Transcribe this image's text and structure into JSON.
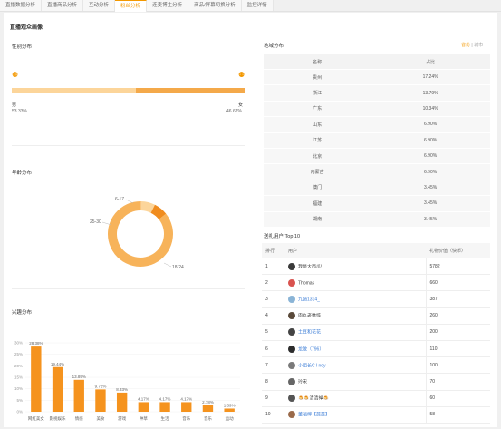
{
  "tabs": [
    {
      "label": "直播数据分析",
      "active": false
    },
    {
      "label": "直播商品分析",
      "active": false
    },
    {
      "label": "互动分析",
      "active": false
    },
    {
      "label": "粉丝分析",
      "active": true
    },
    {
      "label": "连麦博主分析",
      "active": false
    },
    {
      "label": "商品/屏幕切换分析",
      "active": false
    },
    {
      "label": "监控详情",
      "active": false
    }
  ],
  "page_title": "直播观众画像",
  "gender": {
    "title": "性别分布",
    "male_label": "男",
    "male_pct": "53.33%",
    "male_value": 53.33,
    "female_label": "女",
    "female_pct": "46.67%",
    "female_value": 46.67,
    "male_icon": "male-icon",
    "female_icon": "female-icon"
  },
  "age": {
    "title": "年龄分布",
    "labels": {
      "a": "6-17",
      "b": "25-30",
      "c": "18-24"
    }
  },
  "interest": {
    "title": "兴趣分布"
  },
  "region": {
    "title": "地域分布",
    "switch_province": "省份",
    "switch_sep": "|",
    "switch_city": "城市",
    "headers": [
      "名称",
      "占比"
    ],
    "rows": [
      [
        "贵州",
        "17.24%"
      ],
      [
        "浙江",
        "13.79%"
      ],
      [
        "广东",
        "10.34%"
      ],
      [
        "山东",
        "6.90%"
      ],
      [
        "江苏",
        "6.90%"
      ],
      [
        "北京",
        "6.90%"
      ],
      [
        "内蒙古",
        "6.90%"
      ],
      [
        "澳门",
        "3.45%"
      ],
      [
        "福建",
        "3.45%"
      ],
      [
        "湖南",
        "3.45%"
      ]
    ]
  },
  "top10": {
    "title": "送礼用户 Top 10",
    "headers": [
      "排行",
      "用户",
      "礼物价值（快币）"
    ],
    "rows": [
      {
        "rank": "1",
        "name": "我是大西瓜!",
        "value": "5782",
        "link": false,
        "avatar": "#3a3a3a"
      },
      {
        "rank": "2",
        "name": "Thomas",
        "value": "660",
        "link": false,
        "avatar": "#d9534f"
      },
      {
        "rank": "3",
        "name": "九嶺1314_",
        "value": "387",
        "link": true,
        "avatar": "#8ab4d6"
      },
      {
        "rank": "4",
        "name": "肉丸老憔悴",
        "value": "260",
        "link": false,
        "avatar": "#5a4a3a"
      },
      {
        "rank": "5",
        "name": "土豆和花花",
        "value": "200",
        "link": true,
        "avatar": "#444"
      },
      {
        "rank": "6",
        "name": "龙敢（796）",
        "value": "110",
        "link": true,
        "avatar": "#2d2d2d"
      },
      {
        "rank": "7",
        "name": "小组长C l ndy",
        "value": "100",
        "link": true,
        "avatar": "#7a7a7a"
      },
      {
        "rank": "8",
        "name": "玲宋",
        "value": "70",
        "link": false,
        "avatar": "#666"
      },
      {
        "rank": "9",
        "name": "🍮🍮清清禅🍮",
        "value": "60",
        "link": false,
        "avatar": "#555"
      },
      {
        "rank": "10",
        "name": "董瑞檸【蕊蕊】",
        "value": "58",
        "link": true,
        "avatar": "#9a6a4a"
      }
    ]
  },
  "chart_data": [
    {
      "type": "pie",
      "title": "年龄分布",
      "donut": true,
      "categories": [
        "18-24",
        "25-30",
        "6-17"
      ],
      "values": [
        86,
        7,
        7
      ],
      "colors": [
        "#f7b35a",
        "#fcd59a",
        "#f08c1e"
      ]
    },
    {
      "type": "bar",
      "title": "兴趣分布",
      "categories": [
        "网红美女",
        "影视娱乐",
        "情感",
        "美食",
        "游戏",
        "种草",
        "生活",
        "音乐",
        "音乐",
        "运动"
      ],
      "values": [
        28.38,
        19.44,
        13.89,
        9.72,
        8.33,
        4.17,
        4.17,
        4.17,
        2.78,
        1.39
      ],
      "labels": [
        "28.38%",
        "19.44%",
        "13.89%",
        "9.72%",
        "8.33%",
        "4.17%",
        "4.17%",
        "4.17%",
        "2.78%",
        "1.39%"
      ],
      "ylim": [
        0,
        30
      ],
      "yticks": [
        "0%",
        "5%",
        "10%",
        "15%",
        "20%",
        "25%",
        "30%"
      ],
      "color": "#f5931e"
    }
  ]
}
